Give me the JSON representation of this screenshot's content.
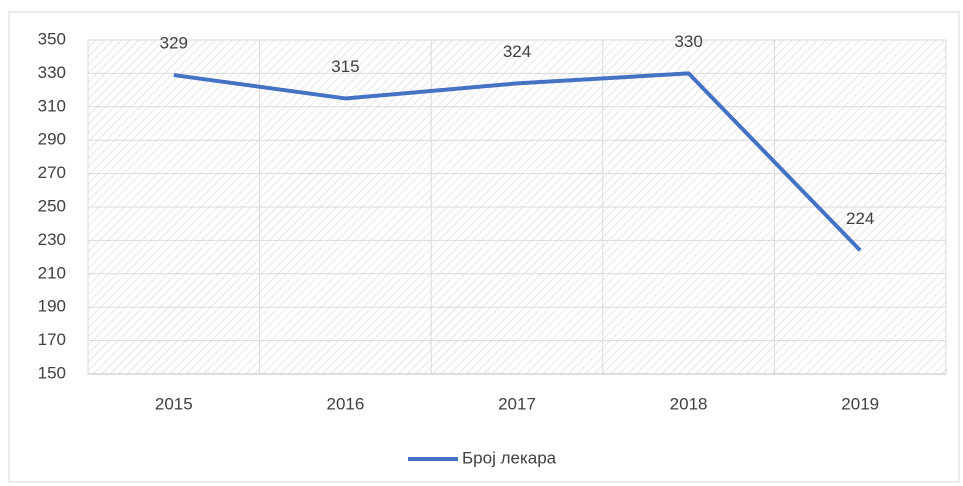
{
  "chart_data": {
    "type": "line",
    "categories": [
      "2015",
      "2016",
      "2017",
      "2018",
      "2019"
    ],
    "series": [
      {
        "name": "Број лекара",
        "color": "#4472c4",
        "values": [
          329,
          315,
          324,
          330,
          224
        ]
      }
    ],
    "ylim": [
      150,
      350
    ],
    "yticks": [
      150,
      170,
      190,
      210,
      230,
      250,
      270,
      290,
      310,
      330,
      350
    ],
    "grid": true,
    "legend": "bottom"
  }
}
